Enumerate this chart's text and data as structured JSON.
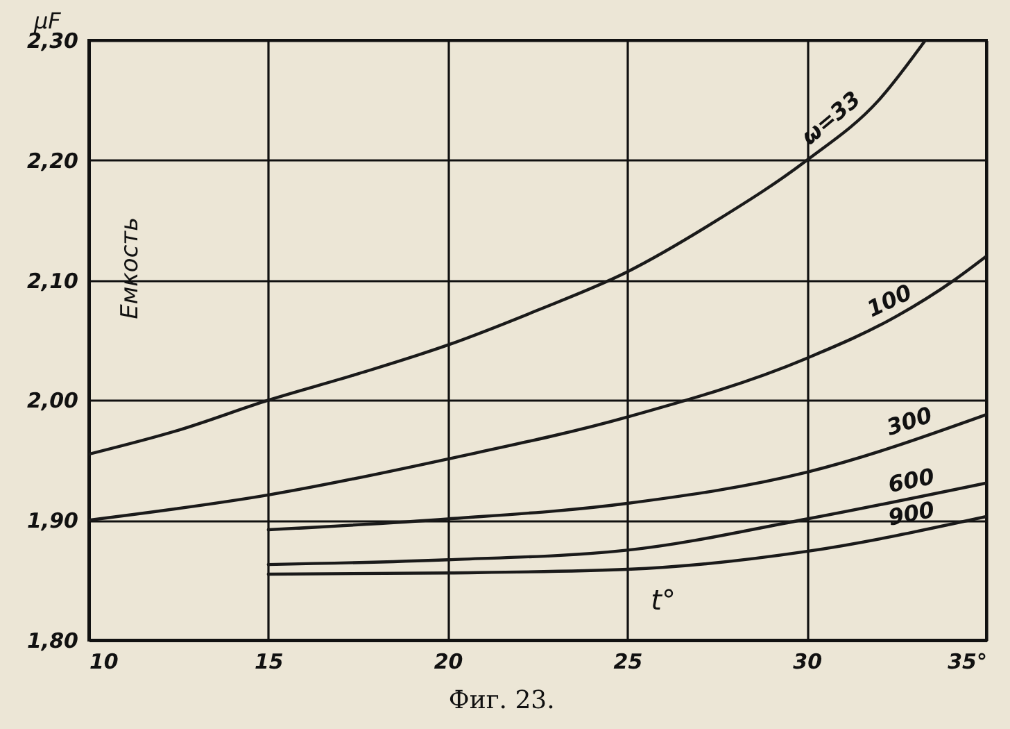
{
  "chart_data": {
    "type": "line",
    "xlabel": "t°",
    "ylabel": "μF",
    "annotations": [
      "Емкость",
      "Фиг. 23."
    ],
    "xlim": [
      10,
      35
    ],
    "xticks": [
      10,
      15,
      20,
      25,
      30,
      {
        "value": 35,
        "label": "35°"
      }
    ],
    "ylim": [
      1.8,
      2.3
    ],
    "yticks": [
      {
        "value": 1.8,
        "label": "1,80"
      },
      {
        "value": 1.9,
        "label": "1,90"
      },
      {
        "value": 2.0,
        "label": "2,00"
      },
      {
        "value": 2.1,
        "label": "2,10"
      },
      {
        "value": 2.2,
        "label": "2,20"
      },
      {
        "value": 2.3,
        "label": "2,30"
      }
    ],
    "grid": true,
    "legend": false,
    "marker": "none",
    "line_style": "solid",
    "series": [
      {
        "name": "ω=33",
        "color": "#1a1a1a",
        "x": [
          10,
          12.5,
          15,
          17.5,
          20,
          22.5,
          25,
          27.5,
          30,
          32,
          33.3
        ],
        "values": [
          1.955,
          1.975,
          2.0,
          2.022,
          2.046,
          2.075,
          2.107,
          2.15,
          2.2,
          2.25,
          2.3
        ]
      },
      {
        "name": "100",
        "color": "#1a1a1a",
        "x": [
          10,
          15,
          20,
          25,
          30,
          32.5,
          34.1,
          35
        ],
        "values": [
          1.9,
          1.921,
          1.951,
          1.986,
          2.035,
          2.07,
          2.1,
          2.12
        ]
      },
      {
        "name": "300",
        "color": "#1a1a1a",
        "x": [
          15,
          20,
          25,
          30,
          35
        ],
        "values": [
          1.892,
          1.901,
          1.914,
          1.94,
          1.988
        ]
      },
      {
        "name": "600",
        "color": "#1a1a1a",
        "x": [
          15,
          20,
          25,
          30,
          35
        ],
        "values": [
          1.863,
          1.867,
          1.875,
          1.901,
          1.931
        ]
      },
      {
        "name": "900",
        "color": "#1a1a1a",
        "x": [
          15,
          20,
          25,
          30,
          35
        ],
        "values": [
          1.855,
          1.856,
          1.859,
          1.874,
          1.903
        ]
      }
    ]
  }
}
